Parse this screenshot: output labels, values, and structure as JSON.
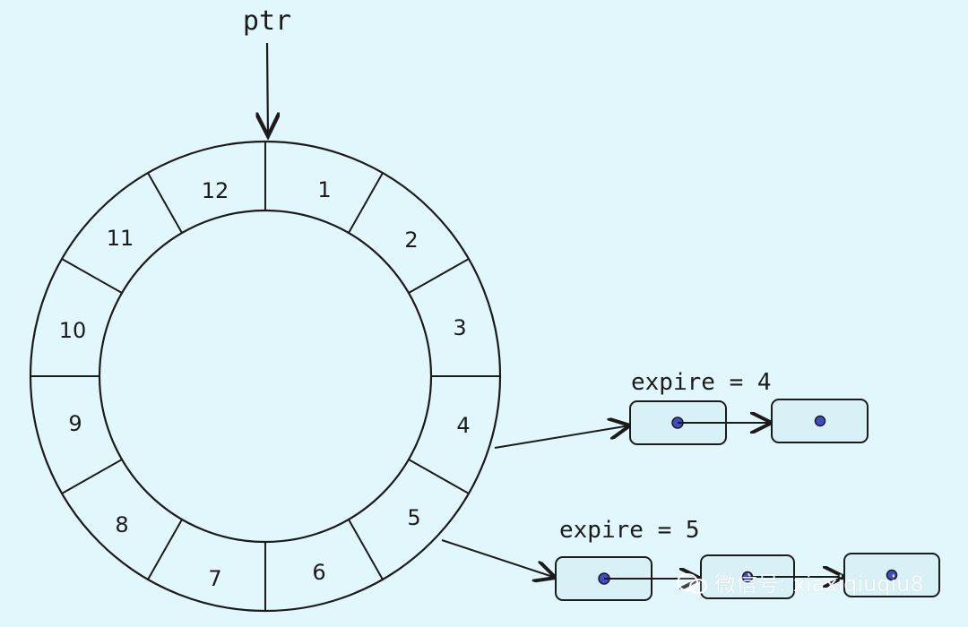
{
  "diagram": {
    "pointer_label": "ptr",
    "slots": [
      "1",
      "2",
      "3",
      "4",
      "5",
      "6",
      "7",
      "8",
      "9",
      "10",
      "11",
      "12"
    ],
    "expire_4_label": "expire = 4",
    "expire_5_label": "expire = 5"
  },
  "watermark": {
    "text": "微信号: xiaxiqiuqiu8"
  },
  "colors": {
    "background": "#e2f7fb",
    "line": "#1b1b1b",
    "node_fill": "#d8f1f7",
    "node_dot": "#3f4cc8"
  }
}
